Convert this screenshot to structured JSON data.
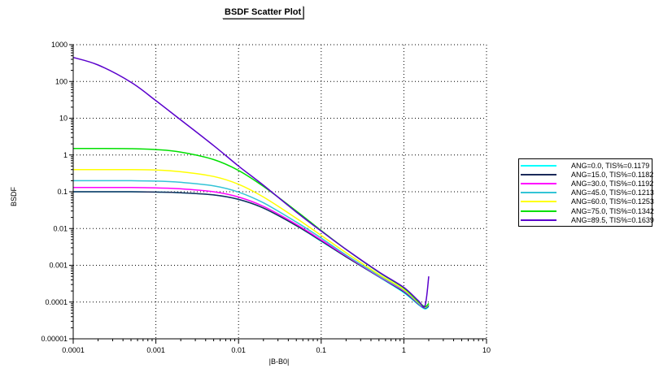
{
  "chart_data": {
    "type": "line",
    "title": "BSDF Scatter Plot",
    "xlabel": "|B-B0|",
    "ylabel": "BSDF",
    "xscale": "log",
    "yscale": "log",
    "xlim": [
      0.0001,
      10
    ],
    "ylim": [
      1e-05,
      1000
    ],
    "grid": true,
    "legend_position": "right",
    "x_tick_labels": [
      "0.0001",
      "0.001",
      "0.01",
      "0.1",
      "1",
      "10"
    ],
    "y_tick_labels": [
      "0.00001",
      "0.0001",
      "0.001",
      "0.01",
      "0.1",
      "1",
      "10",
      "100",
      "1000"
    ],
    "x": [
      0.0001,
      0.0002,
      0.0005,
      0.001,
      0.002,
      0.005,
      0.01,
      0.02,
      0.05,
      0.1,
      0.2,
      0.5,
      1,
      1.5,
      1.8,
      2.0
    ],
    "series": [
      {
        "name": "ANG=0.0, TIS%=0.1179",
        "color": "#00ffff",
        "values": [
          0.1,
          0.1,
          0.1,
          0.098,
          0.094,
          0.082,
          0.062,
          0.036,
          0.012,
          0.0045,
          0.0017,
          0.00048,
          0.00018,
          8.5e-05,
          6.5e-05,
          7.5e-05
        ]
      },
      {
        "name": "ANG=15.0, TIS%=0.1182",
        "color": "#1a2a5a",
        "values": [
          0.1,
          0.1,
          0.1,
          0.098,
          0.094,
          0.082,
          0.062,
          0.036,
          0.012,
          0.0046,
          0.0017,
          0.00049,
          0.00019,
          8.8e-05,
          6.8e-05,
          8e-05
        ]
      },
      {
        "name": "ANG=30.0, TIS%=0.1192",
        "color": "#ff00ff",
        "values": [
          0.13,
          0.13,
          0.13,
          0.127,
          0.12,
          0.1,
          0.072,
          0.04,
          0.013,
          0.0049,
          0.0018,
          0.0005,
          0.0002,
          9e-05,
          7e-05,
          8.5e-05
        ]
      },
      {
        "name": "ANG=45.0, TIS%=0.1213",
        "color": "#33c4d6",
        "values": [
          0.2,
          0.2,
          0.2,
          0.195,
          0.18,
          0.145,
          0.098,
          0.05,
          0.015,
          0.0055,
          0.0019,
          0.00052,
          0.00021,
          9.3e-05,
          7.1e-05,
          8.8e-05
        ]
      },
      {
        "name": "ANG=60.0, TIS%=0.1253",
        "color": "#ffff00",
        "values": [
          0.4,
          0.4,
          0.4,
          0.39,
          0.35,
          0.26,
          0.16,
          0.072,
          0.019,
          0.0065,
          0.0022,
          0.00056,
          0.00022,
          9.8e-05,
          7.3e-05,
          9e-05
        ]
      },
      {
        "name": "ANG=75.0, TIS%=0.1342",
        "color": "#00e000",
        "values": [
          1.5,
          1.5,
          1.48,
          1.4,
          1.2,
          0.75,
          0.38,
          0.14,
          0.03,
          0.0088,
          0.0027,
          0.00064,
          0.00024,
          0.000102,
          7.5e-05,
          9.2e-05
        ]
      },
      {
        "name": "ANG=89.5, TIS%=0.1639",
        "color": "#5a00cc",
        "values": [
          450,
          280,
          95,
          30,
          9,
          1.8,
          0.5,
          0.15,
          0.028,
          0.0085,
          0.0027,
          0.00066,
          0.00025,
          0.000108,
          7.9e-05,
          0.0005
        ]
      }
    ]
  }
}
